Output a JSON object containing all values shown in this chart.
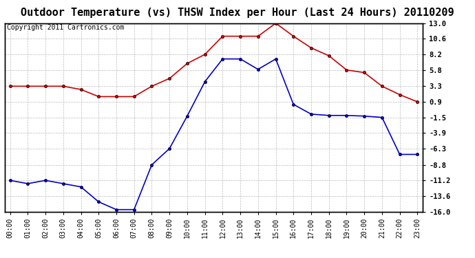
{
  "title": "Outdoor Temperature (vs) THSW Index per Hour (Last 24 Hours) 20110209",
  "copyright": "Copyright 2011 Cartronics.com",
  "hours": [
    "00:00",
    "01:00",
    "02:00",
    "03:00",
    "04:00",
    "05:00",
    "06:00",
    "07:00",
    "08:00",
    "09:00",
    "10:00",
    "11:00",
    "12:00",
    "13:00",
    "14:00",
    "15:00",
    "16:00",
    "17:00",
    "18:00",
    "19:00",
    "20:00",
    "21:00",
    "22:00",
    "23:00"
  ],
  "red_data": [
    3.3,
    3.3,
    3.3,
    3.3,
    2.8,
    1.7,
    1.7,
    1.7,
    3.3,
    4.5,
    6.8,
    8.2,
    11.0,
    11.0,
    11.0,
    13.0,
    11.0,
    9.2,
    8.0,
    5.8,
    5.4,
    3.3,
    2.0,
    0.9
  ],
  "blue_data": [
    -11.2,
    -11.7,
    -11.2,
    -11.7,
    -12.2,
    -14.5,
    -15.7,
    -15.7,
    -8.8,
    -6.3,
    -1.3,
    4.0,
    7.5,
    7.5,
    5.9,
    7.5,
    0.5,
    -1.0,
    -1.2,
    -1.2,
    -1.3,
    -1.5,
    -7.2,
    -7.2
  ],
  "ylim": [
    -16.0,
    13.0
  ],
  "yticks": [
    -16.0,
    -13.6,
    -11.2,
    -8.8,
    -6.3,
    -3.9,
    -1.5,
    0.9,
    3.3,
    5.8,
    8.2,
    10.6,
    13.0
  ],
  "red_color": "#cc0000",
  "blue_color": "#0000cc",
  "grid_color": "#aaaaaa",
  "bg_color": "#ffffff",
  "plot_bg_color": "#ffffff",
  "title_fontsize": 11,
  "copyright_fontsize": 7
}
